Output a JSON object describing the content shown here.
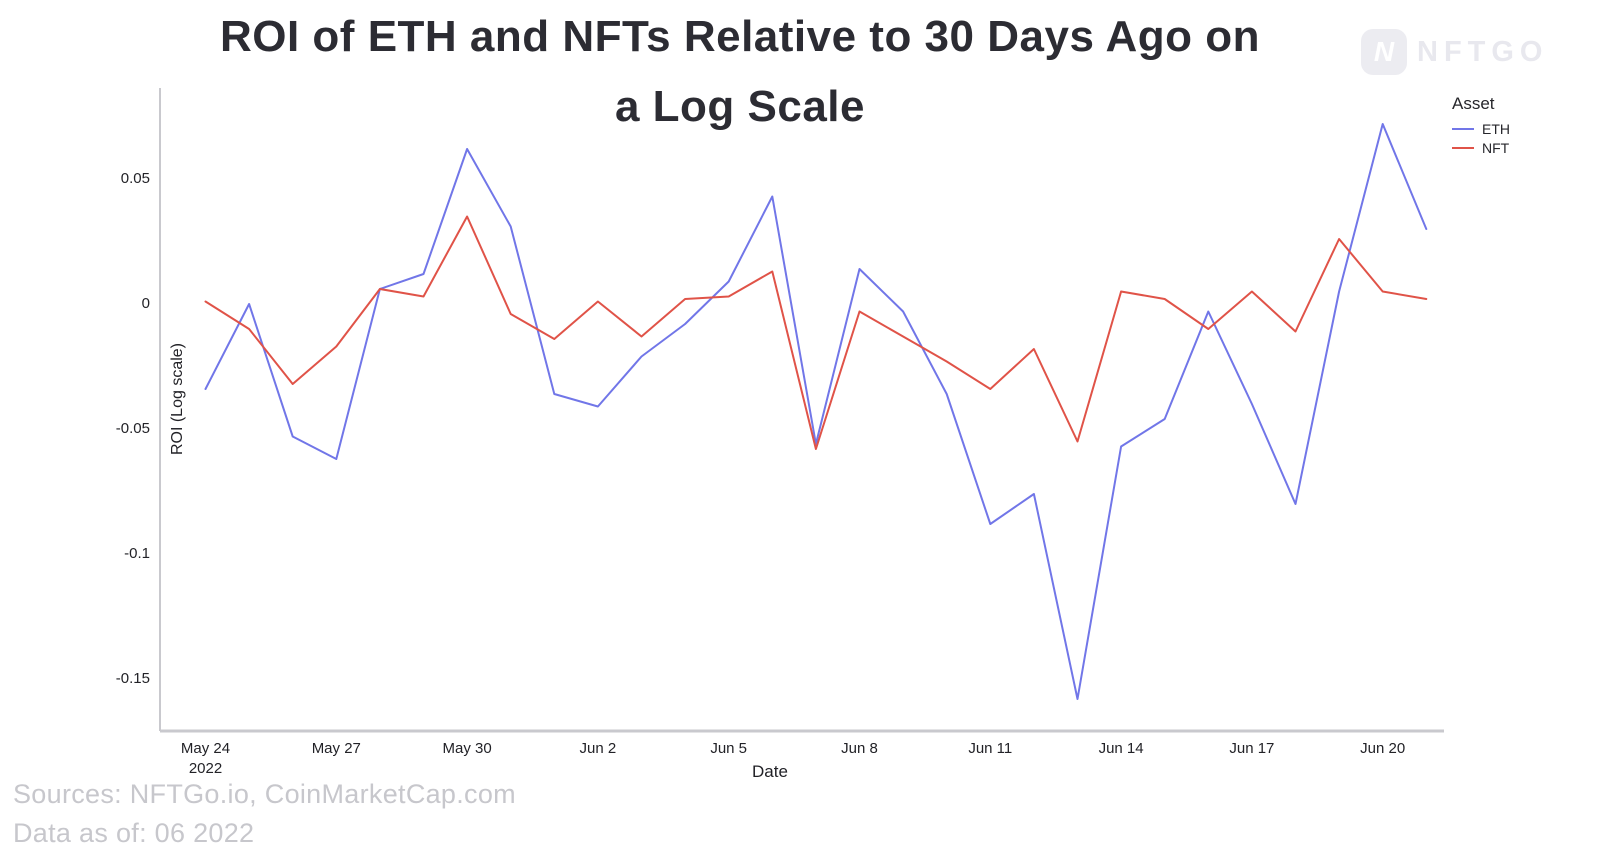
{
  "title": {
    "line1": "ROI of ETH and NFTs Relative to 30 Days Ago on",
    "line2": "a Log Scale"
  },
  "logo": {
    "badge_letter": "N",
    "text": "NFTGO"
  },
  "legend": {
    "title": "Asset",
    "items": [
      {
        "label": "ETH",
        "color": "#7176e8"
      },
      {
        "label": "NFT",
        "color": "#e05348"
      }
    ]
  },
  "axes": {
    "y_label": "ROI (Log scale)",
    "x_label": "Date",
    "y_ticks": [
      {
        "v": 0.05,
        "label": "0.05"
      },
      {
        "v": 0,
        "label": "0"
      },
      {
        "v": -0.05,
        "label": "-0.05"
      },
      {
        "v": -0.1,
        "label": "-0.1"
      },
      {
        "v": -0.15,
        "label": "-0.15"
      }
    ],
    "x_ticks": [
      {
        "i": 0,
        "label": "May 24\n2022"
      },
      {
        "i": 3,
        "label": "May 27"
      },
      {
        "i": 6,
        "label": "May 30"
      },
      {
        "i": 9,
        "label": "Jun 2"
      },
      {
        "i": 12,
        "label": "Jun 5"
      },
      {
        "i": 15,
        "label": "Jun 8"
      },
      {
        "i": 18,
        "label": "Jun 11"
      },
      {
        "i": 21,
        "label": "Jun 14"
      },
      {
        "i": 24,
        "label": "Jun 17"
      },
      {
        "i": 27,
        "label": "Jun 20"
      }
    ]
  },
  "footer": {
    "sources": "Sources: NFTGo.io, CoinMarketCap.com",
    "data_as_of": "Data as of: 06 2022"
  },
  "chart_data": {
    "type": "line",
    "title": "ROI of ETH and NFTs Relative to 30 Days Ago on a Log Scale",
    "xlabel": "Date",
    "ylabel": "ROI (Log scale)",
    "legend_title": "Asset",
    "legend_position": "top-right",
    "grid": false,
    "ylim": [
      -0.17,
      0.08
    ],
    "y_tick_values": [
      0.05,
      0,
      -0.05,
      -0.1,
      -0.15
    ],
    "x": [
      "May 24",
      "May 25",
      "May 26",
      "May 27",
      "May 28",
      "May 29",
      "May 30",
      "May 31",
      "Jun 1",
      "Jun 2",
      "Jun 3",
      "Jun 4",
      "Jun 5",
      "Jun 6",
      "Jun 7",
      "Jun 8",
      "Jun 9",
      "Jun 10",
      "Jun 11",
      "Jun 12",
      "Jun 13",
      "Jun 14",
      "Jun 15",
      "Jun 16",
      "Jun 17",
      "Jun 18",
      "Jun 19",
      "Jun 20",
      "Jun 21"
    ],
    "series": [
      {
        "name": "ETH",
        "color": "#7176e8",
        "values": [
          -0.034,
          0,
          -0.053,
          -0.062,
          0.006,
          0.012,
          0.062,
          0.031,
          -0.036,
          -0.041,
          -0.021,
          -0.008,
          0.009,
          0.043,
          -0.056,
          0.014,
          -0.003,
          -0.036,
          -0.088,
          -0.076,
          -0.158,
          -0.057,
          -0.046,
          -0.003,
          -0.04,
          -0.08,
          0.005,
          0.072,
          0.03
        ]
      },
      {
        "name": "NFT",
        "color": "#e05348",
        "values": [
          0.001,
          -0.01,
          -0.032,
          -0.017,
          0.006,
          0.003,
          0.035,
          -0.004,
          -0.014,
          0.001,
          -0.013,
          0.002,
          0.003,
          0.013,
          -0.058,
          -0.003,
          -0.013,
          -0.023,
          -0.034,
          -0.018,
          -0.055,
          0.005,
          0.002,
          -0.01,
          0.005,
          -0.011,
          0.026,
          0.005,
          0.002
        ]
      }
    ]
  }
}
